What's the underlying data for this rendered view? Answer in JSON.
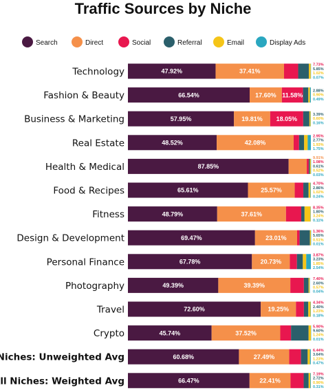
{
  "chart_data": {
    "type": "bar",
    "orientation": "horizontal",
    "stacked": true,
    "percent_stacked": true,
    "title": "Traffic Sources by Niche",
    "legend_position": "top",
    "xlim": [
      0,
      100
    ],
    "grid": false,
    "categories": [
      "Technology",
      "Fashion & Beauty",
      "Business & Marketing",
      "Real Estate",
      "Health & Medical",
      "Food & Recipes",
      "Fitness",
      "Design & Development",
      "Personal Finance",
      "Photography",
      "Travel",
      "Crypto",
      "All Niches: Unweighted Avg",
      "All Niches: Weighted Avg"
    ],
    "bold_categories": [
      "All Niches: Unweighted Avg",
      "All Niches: Weighted Avg"
    ],
    "series": [
      {
        "name": "Search",
        "color": "#4a1942",
        "values": [
          47.92,
          66.54,
          57.95,
          48.52,
          87.85,
          65.61,
          48.79,
          69.47,
          67.78,
          49.39,
          72.6,
          45.74,
          60.68,
          66.47
        ]
      },
      {
        "name": "Direct",
        "color": "#f5904a",
        "values": [
          37.41,
          17.6,
          19.81,
          42.08,
          9.91,
          25.57,
          37.61,
          23.01,
          20.73,
          39.39,
          19.25,
          37.52,
          27.49,
          22.41
        ]
      },
      {
        "name": "Social",
        "color": "#e8174f",
        "values": [
          7.73,
          11.58,
          18.05,
          2.95,
          1.08,
          4.7,
          8.35,
          1.36,
          3.87,
          7.4,
          4.34,
          5.9,
          6.44,
          7.19
        ]
      },
      {
        "name": "Referral",
        "color": "#2b5f6b",
        "values": [
          5.85,
          2.88,
          3.39,
          2.77,
          0.61,
          2.86,
          1.8,
          5.65,
          3.23,
          2.6,
          2.4,
          9.6,
          3.64,
          2.72
        ]
      },
      {
        "name": "Email",
        "color": "#f5c518",
        "values": [
          1.02,
          0.9,
          0.6,
          1.93,
          0.52,
          1.02,
          3.24,
          0.51,
          1.85,
          0.57,
          1.23,
          1.24,
          1.23,
          0.9
        ]
      },
      {
        "name": "Display Ads",
        "color": "#2aa7c0",
        "values": [
          0.07,
          0.49,
          0.16,
          1.75,
          0.03,
          0.24,
          0.11,
          0.01,
          2.54,
          0.04,
          0.18,
          0.01,
          0.47,
          0.31
        ]
      }
    ]
  }
}
